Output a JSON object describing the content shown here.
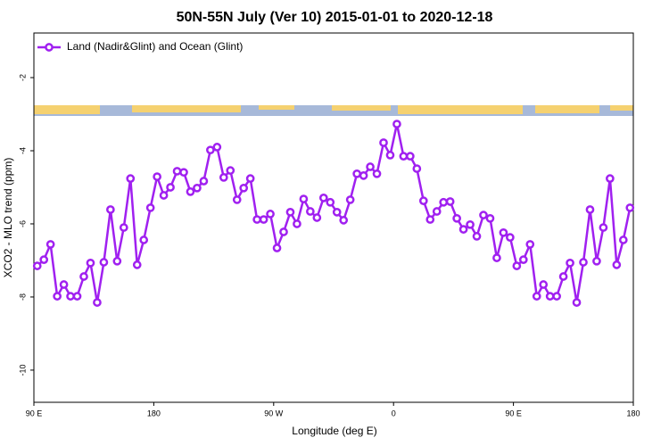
{
  "chart_data": {
    "type": "line",
    "title": "50N-55N July (Ver 10)   2015-01-01 to 2020-12-18",
    "xlabel": "Longitude (deg E)",
    "ylabel": "XCO2 - MLO trend (ppm)",
    "xlim": [
      90,
      540
    ],
    "xticks": [
      {
        "value": 90,
        "label": "90 E"
      },
      180,
      {
        "value": 270,
        "label": "90 W"
      },
      {
        "value": 360,
        "label": "0"
      },
      {
        "value": 450,
        "label": "90 E"
      },
      {
        "value": 540,
        "label": "180"
      }
    ],
    "ylim": [
      -10.88,
      -0.78
    ],
    "yticks": [
      -2,
      -4,
      -6,
      -8,
      -10
    ],
    "legend": "upper left",
    "x": [
      92.5,
      97.5,
      102.5,
      107.5,
      112.5,
      117.5,
      122.5,
      127.5,
      132.5,
      137.5,
      142.5,
      147.5,
      152.5,
      157.5,
      162.5,
      167.5,
      172.5,
      177.5,
      182.5,
      187.5,
      192.5,
      197.5,
      202.5,
      207.5,
      212.5,
      217.5,
      222.5,
      227.5,
      232.5,
      237.5,
      242.5,
      247.5,
      252.5,
      257.5,
      262.5,
      267.5,
      272.5,
      277.5,
      282.5,
      287.5,
      292.5,
      297.5,
      302.5,
      307.5,
      312.5,
      317.5,
      322.5,
      327.5,
      332.5,
      337.5,
      342.5,
      347.5,
      352.5,
      357.5,
      362.5,
      367.5,
      372.5,
      377.5,
      382.5,
      387.5,
      392.5,
      397.5,
      402.5,
      407.5,
      412.5,
      417.5,
      422.5,
      427.5,
      432.5,
      437.5,
      442.5,
      447.5,
      452.5,
      457.5,
      462.5,
      467.5,
      472.5,
      477.5,
      482.5,
      487.5,
      492.5,
      497.5,
      502.5,
      507.5,
      512.5,
      517.5,
      522.5,
      527.5,
      532.5,
      537.5
    ],
    "series": [
      {
        "name": "Land (Nadir&Glint) and Ocean (Glint)",
        "color": "#a020f0",
        "values": [
          -7.15,
          -6.98,
          -6.56,
          -7.98,
          -7.66,
          -7.98,
          -7.98,
          -7.44,
          -7.07,
          -8.15,
          -7.05,
          -5.61,
          -7.02,
          -6.1,
          -4.76,
          -7.12,
          -6.44,
          -5.56,
          -4.71,
          -5.22,
          -5.0,
          -4.56,
          -4.59,
          -5.12,
          -5.02,
          -4.83,
          -3.98,
          -3.9,
          -4.73,
          -4.54,
          -5.34,
          -5.02,
          -4.76,
          -5.88,
          -5.88,
          -5.73,
          -6.66,
          -6.22,
          -5.68,
          -6.0,
          -5.32,
          -5.66,
          -5.83,
          -5.29,
          -5.41,
          -5.68,
          -5.9,
          -5.34,
          -4.63,
          -4.68,
          -4.44,
          -4.63,
          -3.78,
          -4.12,
          -3.27,
          -4.15,
          -4.15,
          -4.49,
          -5.37,
          -5.88,
          -5.66,
          -5.41,
          -5.39,
          -5.85,
          -6.15,
          -6.02,
          -6.34,
          -5.76,
          -5.85,
          -6.93,
          -6.24,
          -6.37,
          -7.15,
          -6.98,
          -6.56,
          -7.98,
          -7.66,
          -7.98,
          -7.98,
          -7.44,
          -7.07,
          -8.15,
          -7.05,
          -5.61,
          -7.02,
          -6.1,
          -4.76,
          -7.12,
          -6.44,
          -5.56
        ]
      }
    ]
  }
}
